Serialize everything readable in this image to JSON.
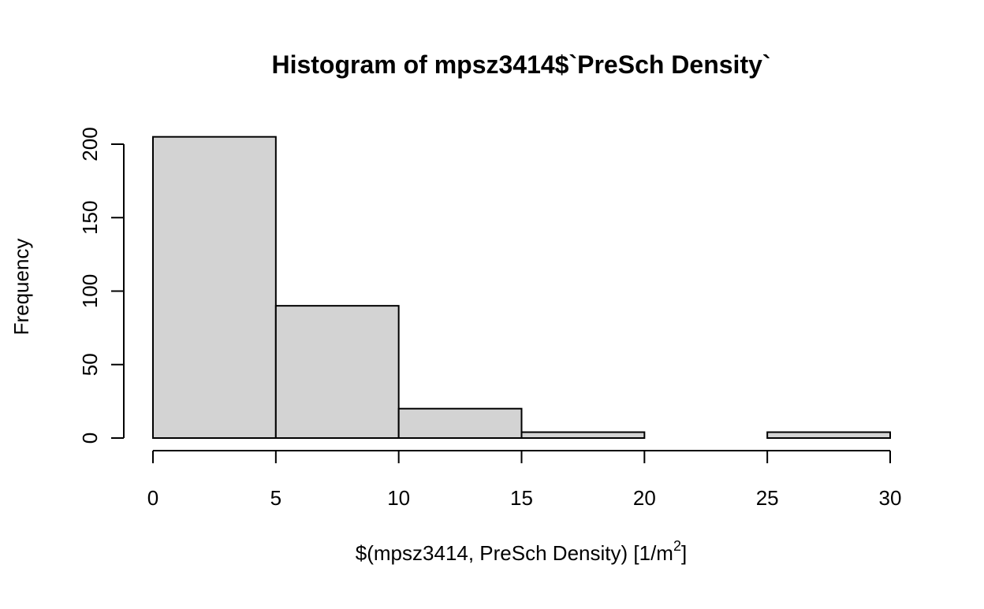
{
  "chart_data": {
    "type": "bar",
    "title": "Histogram of mpsz3414$`PreSch Density`",
    "xlabel": {
      "prefix": "$(mpsz3414, PreSch Density) [1",
      "slash": "/",
      "unit": "m",
      "superscript": "2",
      "suffix": "]"
    },
    "ylabel": "Frequency",
    "bins": [
      {
        "from": 0,
        "to": 5,
        "count": 205
      },
      {
        "from": 5,
        "to": 10,
        "count": 90
      },
      {
        "from": 10,
        "to": 15,
        "count": 20
      },
      {
        "from": 15,
        "to": 20,
        "count": 4
      },
      {
        "from": 20,
        "to": 25,
        "count": 0
      },
      {
        "from": 25,
        "to": 30,
        "count": 4
      }
    ],
    "x_ticks": [
      0,
      5,
      10,
      15,
      20,
      25,
      30
    ],
    "x_tick_labels": [
      "0",
      "5",
      "10",
      "15",
      "20",
      "25",
      "30"
    ],
    "y_ticks": [
      0,
      50,
      100,
      150,
      200
    ],
    "y_tick_labels": [
      "0",
      "50",
      "100",
      "150",
      "200"
    ],
    "xlim": [
      0,
      30
    ],
    "ylim": [
      0,
      205
    ],
    "bar_fill": "#d3d3d3",
    "bar_stroke": "#000000",
    "grid": false,
    "legend": "none"
  }
}
